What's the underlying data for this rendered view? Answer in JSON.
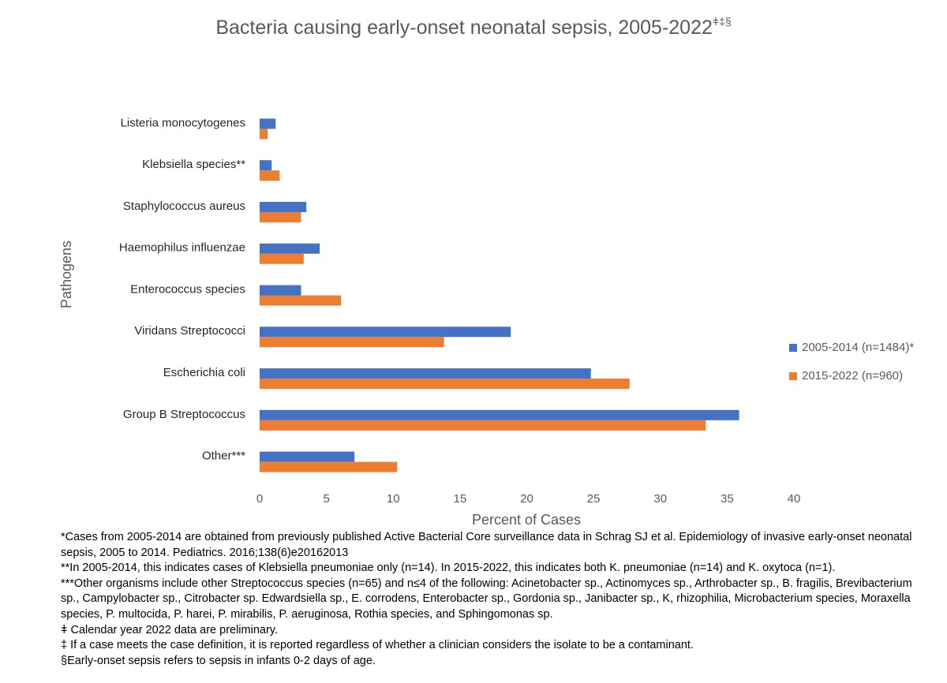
{
  "chart_data": {
    "type": "barh",
    "title": "Bacteria causing early-onset neonatal sepsis, 2005-2022",
    "title_marks": "ǂ‡§",
    "x_label": "Percent of Cases",
    "y_label": "Pathogens",
    "categories": [
      "Listeria monocytogenes",
      "Klebsiella species**",
      "Staphylococcus aureus",
      "Haemophilus influenzae",
      "Enterococcus species",
      "Viridans Streptococci",
      "Escherichia coli",
      "Group B Streptococcus",
      "Other***"
    ],
    "series": [
      {
        "name": "2005-2014 (n=1484)*",
        "color": "#4472c4",
        "values": [
          1.2,
          0.9,
          3.5,
          4.5,
          3.1,
          18.8,
          24.8,
          35.9,
          7.1
        ]
      },
      {
        "name": "2015-2022 (n=960)",
        "color": "#ed7d31",
        "values": [
          0.6,
          1.5,
          3.1,
          3.3,
          6.1,
          13.8,
          27.7,
          33.4,
          10.3
        ]
      }
    ],
    "xlim": [
      0,
      40
    ],
    "xticks": [
      0,
      5,
      10,
      15,
      20,
      25,
      30,
      35,
      40
    ],
    "legend": "right"
  },
  "footnotes": [
    "*Cases from 2005-2014 are obtained from previously published Active Bacterial Core surveillance data in Schrag SJ et al. Epidemiology of invasive early-onset neonatal sepsis, 2005 to 2014. Pediatrics. 2016;138(6)e20162013",
    "**In 2005-2014, this indicates cases of Klebsiella pneumoniae only (n=14).  In 2015-2022, this indicates both K. pneumoniae (n=14) and K. oxytoca (n=1).",
    "***Other organisms include other Streptococcus species (n=65) and n≤4 of the following: Acinetobacter sp., Actinomyces sp., Arthrobacter sp., B. fragilis, Brevibacterium sp., Campylobacter sp., Citrobacter sp. Edwardsiella sp., E. corrodens, Enterobacter sp., Gordonia sp., Janibacter sp., K, rhizophilia, Microbacterium species, Moraxella species, P. multocida, P. harei, P. mirabilis, P. aeruginosa, Rothia species, and Sphingomonas sp.",
    "ǂ Calendar year 2022 data are preliminary.",
    "‡ If a case meets the case definition, it is reported regardless of whether a clinician considers the isolate to be a contaminant.",
    "§Early-onset sepsis refers to sepsis in infants 0-2 days of age."
  ]
}
